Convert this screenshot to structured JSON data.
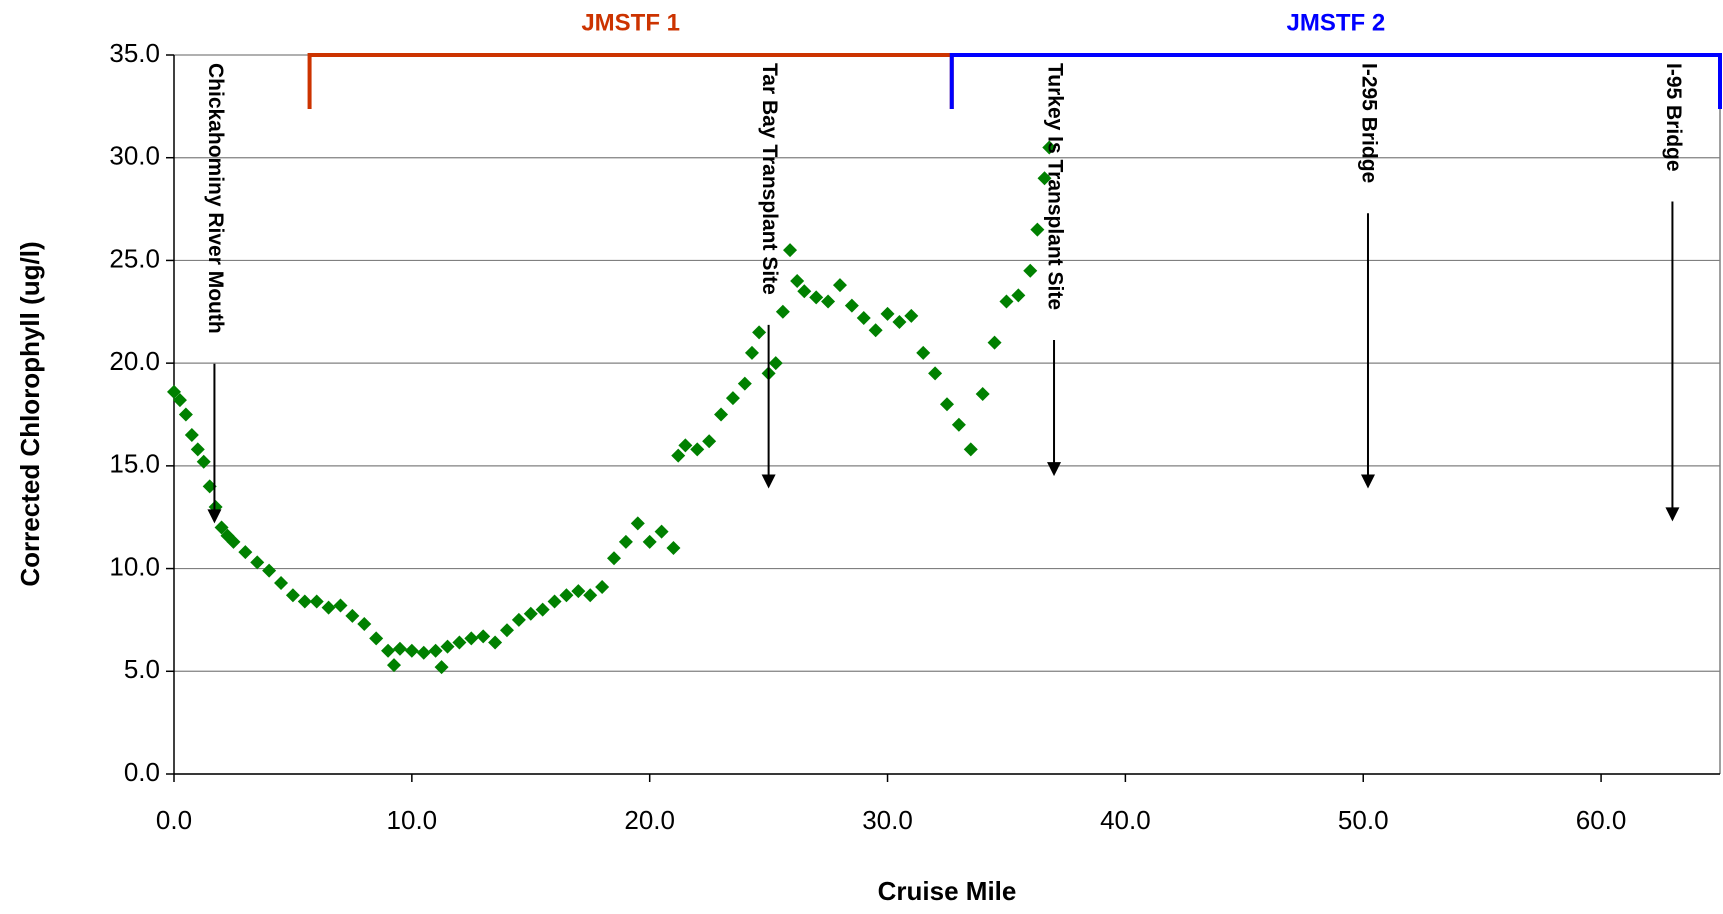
{
  "chart_data": {
    "type": "scatter",
    "x_label": "Cruise Mile",
    "y_label": "Corrected Chlorophyll (ug/l)",
    "color": "#008000",
    "marker": "diamond",
    "grid": true,
    "xlim": [
      0,
      65
    ],
    "ylim": [
      0,
      35
    ],
    "xticks": [
      {
        "value": 0,
        "label": "0.0"
      },
      {
        "value": 10,
        "label": "10.0"
      },
      {
        "value": 20,
        "label": "20.0"
      },
      {
        "value": 30,
        "label": "30.0"
      },
      {
        "value": 40,
        "label": "40.0"
      },
      {
        "value": 50,
        "label": "50.0"
      },
      {
        "value": 60,
        "label": "60.0"
      }
    ],
    "yticks": [
      {
        "value": 0,
        "label": "0.0"
      },
      {
        "value": 5,
        "label": "5.0"
      },
      {
        "value": 10,
        "label": "10.0"
      },
      {
        "value": 15,
        "label": "15.0"
      },
      {
        "value": 20,
        "label": "20.0"
      },
      {
        "value": 25,
        "label": "25.0"
      },
      {
        "value": 30,
        "label": "30.0"
      },
      {
        "value": 35,
        "label": "35.0"
      }
    ],
    "x": [
      0,
      0.25,
      0.5,
      0.75,
      1.0,
      1.25,
      1.5,
      1.75,
      2,
      2.25,
      2.5,
      3,
      3.5,
      4,
      4.5,
      5,
      5.5,
      6,
      6.5,
      7,
      7.5,
      8,
      8.5,
      9,
      9.25,
      9.5,
      10,
      10.5,
      11,
      11.25,
      11.5,
      12,
      12.5,
      13,
      13.5,
      14,
      14.5,
      15,
      15.5,
      16,
      16.5,
      17,
      17.5,
      18,
      18.5,
      19,
      19.5,
      20,
      20.5,
      21,
      21.2,
      21.5,
      22,
      22.5,
      23,
      23.5,
      24,
      24.3,
      24.6,
      25,
      25.3,
      25.6,
      25.9,
      26.2,
      26.5,
      27,
      27.5,
      28,
      28.5,
      29,
      29.5,
      30,
      30.5,
      31,
      31.5,
      32,
      32.5,
      33,
      33.5,
      34,
      34.5,
      35,
      35.5,
      36,
      36.3,
      36.6,
      36.8
    ],
    "values": [
      18.6,
      18.2,
      17.5,
      16.5,
      15.8,
      15.2,
      14.0,
      13.0,
      12.0,
      11.6,
      11.3,
      10.8,
      10.3,
      9.9,
      9.3,
      8.7,
      8.4,
      8.4,
      8.1,
      8.2,
      7.7,
      7.3,
      6.6,
      6.0,
      5.3,
      6.1,
      6.0,
      5.9,
      6.0,
      5.2,
      6.2,
      6.4,
      6.6,
      6.7,
      6.4,
      7.0,
      7.5,
      7.8,
      8.0,
      8.4,
      8.7,
      8.9,
      8.7,
      9.1,
      10.5,
      11.3,
      12.2,
      11.3,
      11.8,
      11.0,
      15.5,
      16.0,
      15.8,
      16.2,
      17.5,
      18.3,
      19.0,
      20.5,
      21.5,
      19.5,
      20.0,
      22.5,
      25.5,
      24.0,
      23.5,
      23.2,
      23.0,
      23.8,
      22.8,
      22.2,
      21.6,
      22.4,
      22.0,
      22.3,
      20.5,
      19.5,
      18.0,
      17.0,
      15.8,
      18.5,
      21.0,
      23.0,
      23.3,
      24.5,
      26.5,
      29.0,
      30.5
    ],
    "regions": [
      {
        "label": "JMSTF 1",
        "start": 5.7,
        "end": 32.7,
        "color": "#cc3300"
      },
      {
        "label": "JMSTF 2",
        "start": 32.7,
        "end": 65,
        "color": "#0000ff"
      }
    ],
    "annotations": [
      {
        "text": "Chickahominy River Mouth",
        "x": 1.7,
        "y": 12.2
      },
      {
        "text": "Tar Bay Transplant Site",
        "x": 25,
        "y": 13.9
      },
      {
        "text": "Turkey Is Transplant Site",
        "x": 37,
        "y": 14.5
      },
      {
        "text": "I-295 Bridge",
        "x": 50.2,
        "y": 13.9
      },
      {
        "text": "I-95 Bridge",
        "x": 63,
        "y": 12.3
      }
    ]
  }
}
